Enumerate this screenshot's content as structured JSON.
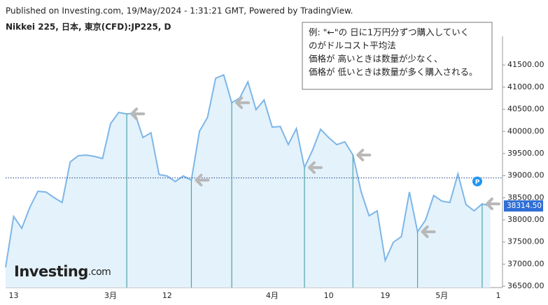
{
  "chart_data": {
    "type": "area",
    "header": "Published on Investing.com, 19/May/2024 - 1:31:21 GMT, Powered by TradingView.",
    "title": "Nikkei 225, 日本, 東京(CFD):JP225, D",
    "annotation": [
      "例: \"←\"の 日に1万円分ずつ購入していく",
      "のがドルコスト平均法",
      "価格が 高いときは数量が少なく、",
      "価格が 低いときは数量が多く購入される。"
    ],
    "logo": {
      "brand": "Investing",
      "suffix": ".com"
    },
    "categories": [
      null,
      "13",
      null,
      null,
      null,
      null,
      null,
      null,
      null,
      null,
      null,
      null,
      null,
      "3月",
      null,
      null,
      null,
      null,
      null,
      null,
      "12",
      null,
      null,
      null,
      null,
      null,
      null,
      null,
      null,
      null,
      null,
      null,
      null,
      "4月",
      null,
      null,
      null,
      null,
      null,
      null,
      "10",
      null,
      null,
      null,
      null,
      null,
      null,
      "19",
      null,
      null,
      null,
      null,
      null,
      null,
      "5月",
      null,
      null,
      null,
      null,
      null,
      null,
      "1"
    ],
    "values": [
      36926,
      38078,
      37810,
      38283,
      38645,
      38630,
      38504,
      38393,
      39308,
      39450,
      39466,
      39434,
      39387,
      40175,
      40428,
      40396,
      40412,
      39860,
      39970,
      39024,
      38993,
      38866,
      38993,
      38898,
      40002,
      40317,
      41200,
      41279,
      40648,
      40759,
      41122,
      40491,
      40711,
      40096,
      40112,
      39702,
      40065,
      39182,
      39576,
      40049,
      39860,
      39702,
      39765,
      39466,
      38645,
      38094,
      38204,
      37084,
      37494,
      37621,
      38630,
      37731,
      37999,
      38551,
      38425,
      38393,
      39040,
      38346,
      38204,
      38362,
      38314.5,
      null
    ],
    "buy_points": [
      15,
      23,
      28,
      37,
      43,
      51,
      59
    ],
    "reference_line": 38950,
    "last_price": {
      "value": 38314.5,
      "label": "38314.50"
    },
    "color": "#7db6e8",
    "area_color": "#e4f2fb",
    "marker_color": "#4fa3a9",
    "ylim": [
      36470,
      42150
    ],
    "yticks": [
      {
        "value": 36500,
        "label": "36500.00"
      },
      {
        "value": 37000,
        "label": "37000.00"
      },
      {
        "value": 37500,
        "label": "37500.00"
      },
      {
        "value": 38000,
        "label": "38000.00"
      },
      {
        "value": 38500,
        "label": "38500.00"
      },
      {
        "value": 39000,
        "label": "39000.00"
      },
      {
        "value": 39500,
        "label": "39500.00"
      },
      {
        "value": 40000,
        "label": "40000.00"
      },
      {
        "value": 40500,
        "label": "40500.00"
      },
      {
        "value": 41000,
        "label": "41000.00"
      },
      {
        "value": 41500,
        "label": "41500.00"
      }
    ]
  }
}
